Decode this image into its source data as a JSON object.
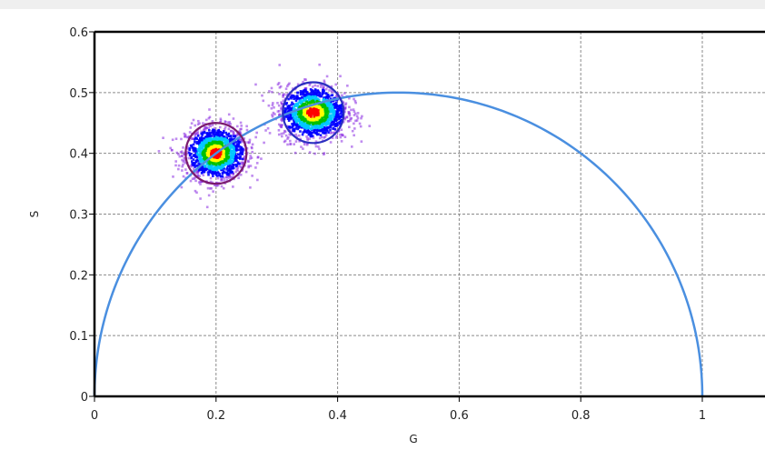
{
  "chart_data": {
    "type": "scatter",
    "title": "",
    "xlabel": "G",
    "ylabel": "S",
    "xlim": [
      0,
      1.1
    ],
    "ylim": [
      0,
      0.6
    ],
    "xticks": [
      0,
      0.2,
      0.4,
      0.6,
      0.8,
      1
    ],
    "xtick_labels": [
      "0",
      "0.2",
      "0.4",
      "0.6",
      "0.8",
      "1"
    ],
    "yticks": [
      0,
      0.1,
      0.2,
      0.3,
      0.4,
      0.5,
      0.6
    ],
    "ytick_labels": [
      "0",
      "0.1",
      "0.2",
      "0.3",
      "0.4",
      "0.5",
      "0.6"
    ],
    "grid": true,
    "universal_circle": {
      "center": [
        0.5,
        0
      ],
      "radius": 0.5,
      "color": "#4a8fe0"
    },
    "clusters": [
      {
        "center": [
          0.2,
          0.4
        ],
        "spread": [
          0.025,
          0.022
        ],
        "circle_radius": 0.05,
        "circle_color": "#7a1a6e"
      },
      {
        "center": [
          0.36,
          0.467
        ],
        "spread": [
          0.028,
          0.022
        ],
        "circle_radius": 0.05,
        "circle_color": "#2b2fc0"
      }
    ],
    "colormap": [
      "#ff0000",
      "#ffff00",
      "#00c000",
      "#00c8ff",
      "#0000ff",
      "#8a2be2"
    ]
  }
}
